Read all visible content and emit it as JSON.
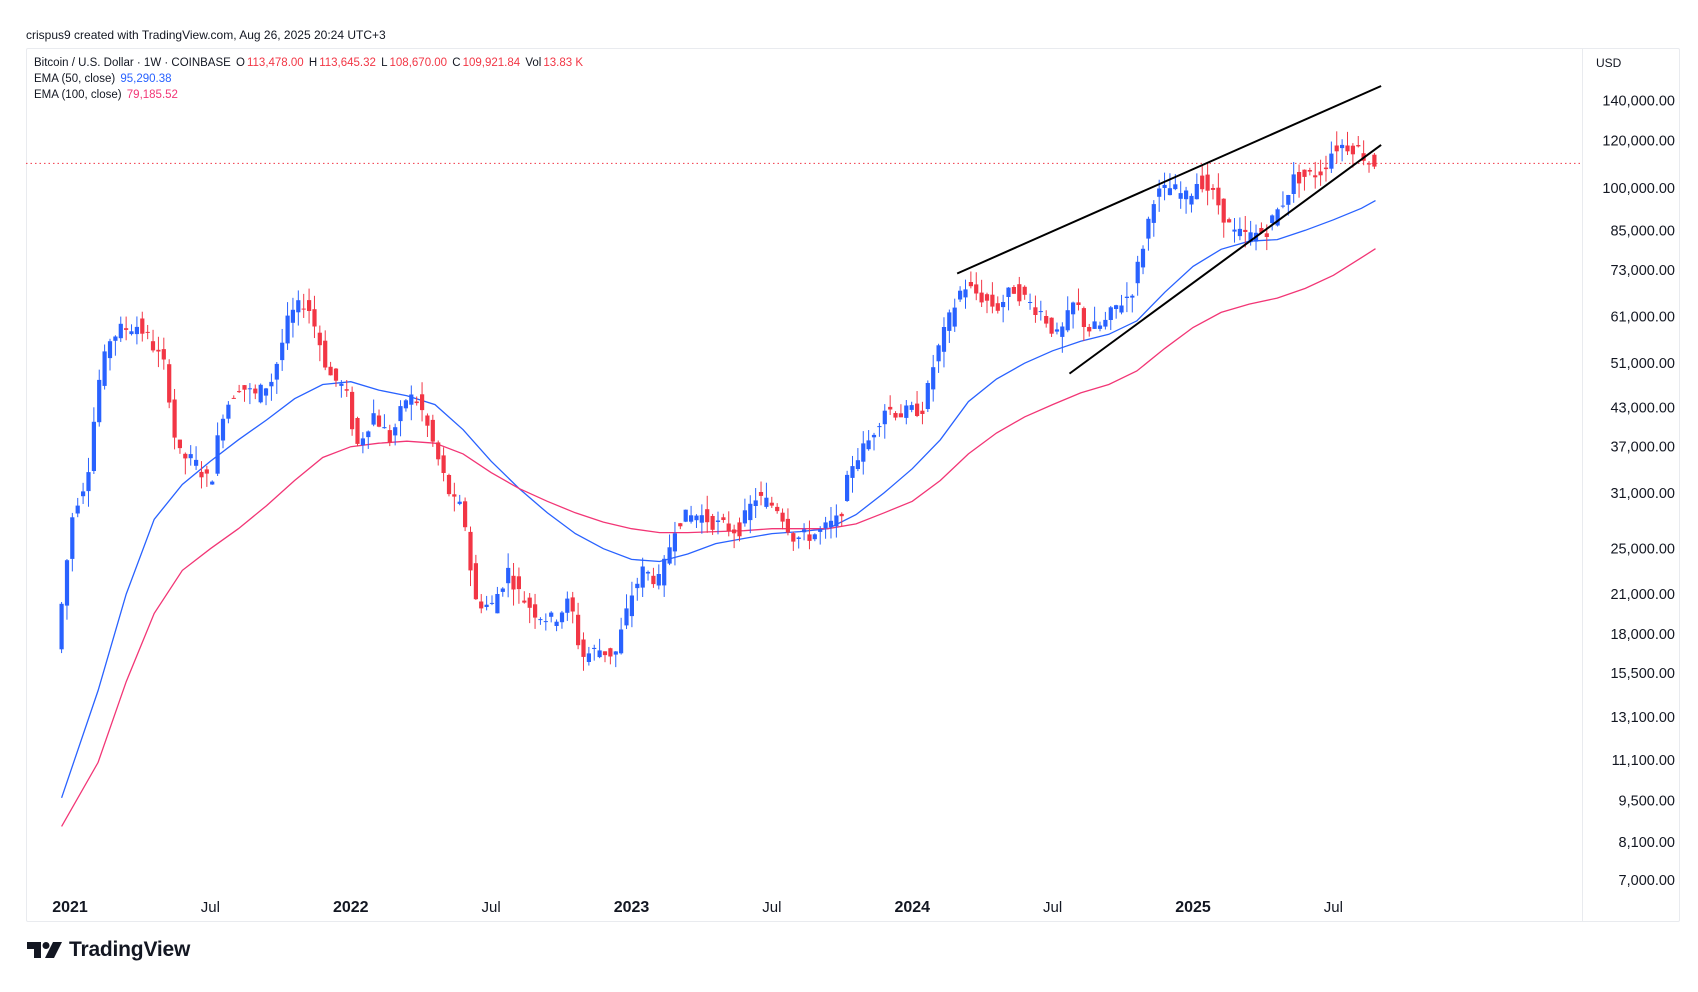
{
  "header": {
    "author": "crispus9",
    "created_text": "created with TradingView.com,",
    "timestamp": "Aug 26, 2025 20:24 UTC+3"
  },
  "legend": {
    "symbol": "Bitcoin / U.S. Dollar · 1W · COINBASE",
    "open_label": "O",
    "open": "113,478.00",
    "high_label": "H",
    "high": "113,645.32",
    "low_label": "L",
    "low": "108,670.00",
    "close_label": "C",
    "close": "109,921.84",
    "vol_label": "Vol",
    "vol": "13.83 K",
    "ema50_label": "EMA (50, close)",
    "ema50_value": "95,290.38",
    "ema100_label": "EMA (100, close)",
    "ema100_value": "79,185.52"
  },
  "currency": "USD",
  "branding": "TradingView",
  "colors": {
    "up": "#2962ff",
    "down": "#f23645",
    "ema50": "#2962ff",
    "ema100": "#f23676",
    "price_line": "#f23645",
    "trendline": "#000000"
  },
  "chart_data": {
    "type": "line",
    "title": "Bitcoin / U.S. Dollar · 1W · COINBASE",
    "scale": "log",
    "ylim": [
      6500,
      162000
    ],
    "x_ticks": [
      {
        "label": "2021",
        "t": 2021.0,
        "major": true
      },
      {
        "label": "Jul",
        "t": 2021.5,
        "major": false
      },
      {
        "label": "2022",
        "t": 2022.0,
        "major": true
      },
      {
        "label": "Jul",
        "t": 2022.5,
        "major": false
      },
      {
        "label": "2023",
        "t": 2023.0,
        "major": true
      },
      {
        "label": "Jul",
        "t": 2023.5,
        "major": false
      },
      {
        "label": "2024",
        "t": 2024.0,
        "major": true
      },
      {
        "label": "Jul",
        "t": 2024.5,
        "major": false
      },
      {
        "label": "2025",
        "t": 2025.0,
        "major": true
      },
      {
        "label": "Jul",
        "t": 2025.5,
        "major": false
      }
    ],
    "y_ticks": [
      {
        "label": "140,000.00",
        "v": 140000
      },
      {
        "label": "120,000.00",
        "v": 120000
      },
      {
        "label": "100,000.00",
        "v": 100000
      },
      {
        "label": "85,000.00",
        "v": 85000
      },
      {
        "label": "73,000.00",
        "v": 73000
      },
      {
        "label": "61,000.00",
        "v": 61000
      },
      {
        "label": "51,000.00",
        "v": 51000
      },
      {
        "label": "43,000.00",
        "v": 43000
      },
      {
        "label": "37,000.00",
        "v": 37000
      },
      {
        "label": "31,000.00",
        "v": 31000
      },
      {
        "label": "25,000.00",
        "v": 25000
      },
      {
        "label": "21,000.00",
        "v": 21000
      },
      {
        "label": "18,000.00",
        "v": 18000
      },
      {
        "label": "15,500.00",
        "v": 15500
      },
      {
        "label": "13,100.00",
        "v": 13100
      },
      {
        "label": "11,100.00",
        "v": 11100
      },
      {
        "label": "9,500.00",
        "v": 9500
      },
      {
        "label": "8,100.00",
        "v": 8100
      },
      {
        "label": "7,000.00",
        "v": 7000
      }
    ],
    "last_price": 109921.84,
    "price_path": [
      [
        2020.97,
        17000
      ],
      [
        2021.03,
        29000
      ],
      [
        2021.08,
        33000
      ],
      [
        2021.12,
        47000
      ],
      [
        2021.16,
        56000
      ],
      [
        2021.2,
        58000
      ],
      [
        2021.26,
        59000
      ],
      [
        2021.3,
        56000
      ],
      [
        2021.36,
        50000
      ],
      [
        2021.4,
        36000
      ],
      [
        2021.46,
        35000
      ],
      [
        2021.52,
        32000
      ],
      [
        2021.56,
        42000
      ],
      [
        2021.62,
        47000
      ],
      [
        2021.68,
        45000
      ],
      [
        2021.74,
        48000
      ],
      [
        2021.8,
        61000
      ],
      [
        2021.86,
        65000
      ],
      [
        2021.9,
        57000
      ],
      [
        2021.94,
        49000
      ],
      [
        2022.0,
        46000
      ],
      [
        2022.04,
        37000
      ],
      [
        2022.1,
        42000
      ],
      [
        2022.16,
        38000
      ],
      [
        2022.22,
        45000
      ],
      [
        2022.26,
        44000
      ],
      [
        2022.3,
        39000
      ],
      [
        2022.34,
        34000
      ],
      [
        2022.38,
        30000
      ],
      [
        2022.42,
        29000
      ],
      [
        2022.46,
        20500
      ],
      [
        2022.52,
        20000
      ],
      [
        2022.58,
        23000
      ],
      [
        2022.62,
        21000
      ],
      [
        2022.68,
        19500
      ],
      [
        2022.74,
        19000
      ],
      [
        2022.8,
        20500
      ],
      [
        2022.84,
        16500
      ],
      [
        2022.9,
        17000
      ],
      [
        2022.96,
        16600
      ],
      [
        2023.02,
        21000
      ],
      [
        2023.06,
        23000
      ],
      [
        2023.12,
        22000
      ],
      [
        2023.18,
        28000
      ],
      [
        2023.26,
        28500
      ],
      [
        2023.32,
        27500
      ],
      [
        2023.4,
        26800
      ],
      [
        2023.46,
        30500
      ],
      [
        2023.54,
        29300
      ],
      [
        2023.6,
        26000
      ],
      [
        2023.68,
        26500
      ],
      [
        2023.76,
        28000
      ],
      [
        2023.8,
        34500
      ],
      [
        2023.86,
        37500
      ],
      [
        2023.92,
        43000
      ],
      [
        2023.98,
        42000
      ],
      [
        2024.06,
        43000
      ],
      [
        2024.1,
        52000
      ],
      [
        2024.16,
        62000
      ],
      [
        2024.2,
        69000
      ],
      [
        2024.26,
        66000
      ],
      [
        2024.32,
        63000
      ],
      [
        2024.38,
        68000
      ],
      [
        2024.44,
        64000
      ],
      [
        2024.48,
        62000
      ],
      [
        2024.54,
        56000
      ],
      [
        2024.6,
        65000
      ],
      [
        2024.64,
        58000
      ],
      [
        2024.7,
        59000
      ],
      [
        2024.74,
        63000
      ],
      [
        2024.8,
        67000
      ],
      [
        2024.84,
        80000
      ],
      [
        2024.88,
        97000
      ],
      [
        2024.94,
        100000
      ],
      [
        2025.0,
        96000
      ],
      [
        2025.04,
        104000
      ],
      [
        2025.1,
        96000
      ],
      [
        2025.16,
        84000
      ],
      [
        2025.22,
        83000
      ],
      [
        2025.28,
        85000
      ],
      [
        2025.34,
        95000
      ],
      [
        2025.38,
        104000
      ],
      [
        2025.44,
        105000
      ],
      [
        2025.48,
        107000
      ],
      [
        2025.52,
        117000
      ],
      [
        2025.56,
        118000
      ],
      [
        2025.6,
        117000
      ],
      [
        2025.65,
        110000
      ]
    ],
    "series": [
      {
        "name": "EMA (50, close)",
        "color": "#2962ff",
        "points": [
          [
            2020.97,
            9600
          ],
          [
            2021.1,
            14500
          ],
          [
            2021.2,
            21000
          ],
          [
            2021.3,
            28000
          ],
          [
            2021.4,
            32000
          ],
          [
            2021.5,
            35000
          ],
          [
            2021.6,
            38000
          ],
          [
            2021.7,
            41000
          ],
          [
            2021.8,
            44500
          ],
          [
            2021.9,
            47000
          ],
          [
            2022.0,
            47500
          ],
          [
            2022.1,
            46000
          ],
          [
            2022.2,
            45000
          ],
          [
            2022.3,
            43500
          ],
          [
            2022.4,
            39500
          ],
          [
            2022.5,
            35000
          ],
          [
            2022.6,
            31500
          ],
          [
            2022.7,
            28700
          ],
          [
            2022.8,
            26500
          ],
          [
            2022.9,
            25000
          ],
          [
            2023.0,
            24000
          ],
          [
            2023.1,
            23800
          ],
          [
            2023.2,
            24500
          ],
          [
            2023.3,
            25500
          ],
          [
            2023.4,
            26000
          ],
          [
            2023.5,
            26500
          ],
          [
            2023.6,
            26700
          ],
          [
            2023.7,
            27000
          ],
          [
            2023.8,
            28500
          ],
          [
            2023.9,
            31000
          ],
          [
            2024.0,
            34000
          ],
          [
            2024.1,
            38000
          ],
          [
            2024.2,
            44000
          ],
          [
            2024.3,
            48000
          ],
          [
            2024.4,
            51000
          ],
          [
            2024.5,
            53500
          ],
          [
            2024.6,
            55500
          ],
          [
            2024.7,
            57000
          ],
          [
            2024.8,
            60000
          ],
          [
            2024.9,
            67000
          ],
          [
            2025.0,
            74000
          ],
          [
            2025.1,
            79000
          ],
          [
            2025.2,
            81500
          ],
          [
            2025.3,
            82000
          ],
          [
            2025.4,
            85000
          ],
          [
            2025.5,
            88500
          ],
          [
            2025.6,
            92500
          ],
          [
            2025.65,
            95290
          ]
        ]
      },
      {
        "name": "EMA (100, close)",
        "color": "#f23676",
        "points": [
          [
            2020.97,
            8600
          ],
          [
            2021.1,
            11000
          ],
          [
            2021.2,
            15000
          ],
          [
            2021.3,
            19500
          ],
          [
            2021.4,
            23000
          ],
          [
            2021.5,
            25000
          ],
          [
            2021.6,
            27000
          ],
          [
            2021.7,
            29500
          ],
          [
            2021.8,
            32500
          ],
          [
            2021.9,
            35500
          ],
          [
            2022.0,
            37000
          ],
          [
            2022.1,
            37500
          ],
          [
            2022.2,
            37800
          ],
          [
            2022.3,
            37500
          ],
          [
            2022.4,
            36000
          ],
          [
            2022.5,
            33500
          ],
          [
            2022.6,
            31500
          ],
          [
            2022.7,
            30000
          ],
          [
            2022.8,
            28700
          ],
          [
            2022.9,
            27700
          ],
          [
            2023.0,
            27000
          ],
          [
            2023.1,
            26600
          ],
          [
            2023.2,
            26600
          ],
          [
            2023.3,
            26700
          ],
          [
            2023.4,
            26800
          ],
          [
            2023.5,
            27000
          ],
          [
            2023.6,
            27000
          ],
          [
            2023.7,
            27000
          ],
          [
            2023.8,
            27500
          ],
          [
            2023.9,
            28700
          ],
          [
            2024.0,
            30000
          ],
          [
            2024.1,
            32500
          ],
          [
            2024.2,
            36000
          ],
          [
            2024.3,
            39000
          ],
          [
            2024.4,
            41500
          ],
          [
            2024.5,
            43500
          ],
          [
            2024.6,
            45500
          ],
          [
            2024.7,
            47000
          ],
          [
            2024.8,
            49500
          ],
          [
            2024.9,
            54000
          ],
          [
            2025.0,
            58500
          ],
          [
            2025.1,
            62000
          ],
          [
            2025.2,
            64000
          ],
          [
            2025.3,
            65500
          ],
          [
            2025.4,
            68000
          ],
          [
            2025.5,
            71500
          ],
          [
            2025.6,
            76500
          ],
          [
            2025.65,
            79185
          ]
        ]
      }
    ],
    "trendlines": [
      {
        "name": "upper-trendline",
        "from": [
          2024.16,
          72000
        ],
        "to": [
          2025.67,
          148000
        ]
      },
      {
        "name": "lower-trendline",
        "from": [
          2024.56,
          49000
        ],
        "to": [
          2025.67,
          118000
        ]
      }
    ]
  }
}
